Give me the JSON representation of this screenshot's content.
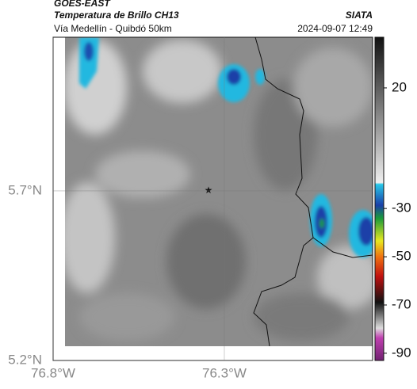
{
  "header": {
    "source": "GOES-EAST",
    "product": "Temperatura de Brillo CH13",
    "agency": "SIATA",
    "route": "Vía Medellín - Quibdó 50km",
    "timestamp": "2024-09-07 12:49"
  },
  "map": {
    "lon_range": [
      -76.8,
      -75.867
    ],
    "lat_range": [
      5.2,
      6.153
    ],
    "lon_ticks": [
      {
        "value": -76.8,
        "label": "76.8°W"
      },
      {
        "value": -76.3,
        "label": "76.3°W"
      }
    ],
    "lat_ticks": [
      {
        "value": 5.2,
        "label": "5.2°N"
      },
      {
        "value": 5.7,
        "label": "5.7°N"
      }
    ]
  },
  "colorbar": {
    "range": [
      -93,
      41
    ],
    "ticks": [
      20,
      -30,
      -50,
      -70,
      -90
    ]
  }
}
